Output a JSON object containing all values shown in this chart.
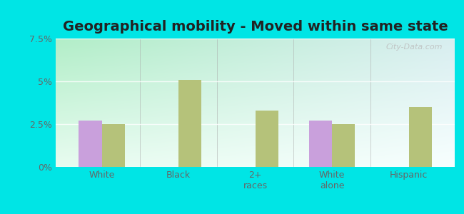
{
  "title": "Geographical mobility - Moved within same state",
  "categories": [
    "White",
    "Black",
    "2+\nraces",
    "White\nalone",
    "Hispanic"
  ],
  "peterstown_values": [
    2.7,
    0.0,
    0.0,
    2.7,
    0.0
  ],
  "wv_values": [
    2.5,
    5.1,
    3.3,
    2.5,
    3.5
  ],
  "peterstown_color": "#c9a0dc",
  "wv_color": "#b5c27a",
  "ylim": [
    0,
    7.5
  ],
  "yticks": [
    0,
    2.5,
    5.0,
    7.5
  ],
  "ytick_labels": [
    "0%",
    "2.5%",
    "5%",
    "7.5%"
  ],
  "bar_width": 0.3,
  "watermark": "City-Data.com",
  "title_fontsize": 14,
  "tick_fontsize": 9,
  "legend_fontsize": 9,
  "outer_bg": "#00e5e5",
  "grad_top_left": "#b2eec8",
  "grad_top_right": "#d8eef0",
  "grad_bottom_left": "#d8f5e0",
  "grad_bottom_right": "#f0fcfc"
}
